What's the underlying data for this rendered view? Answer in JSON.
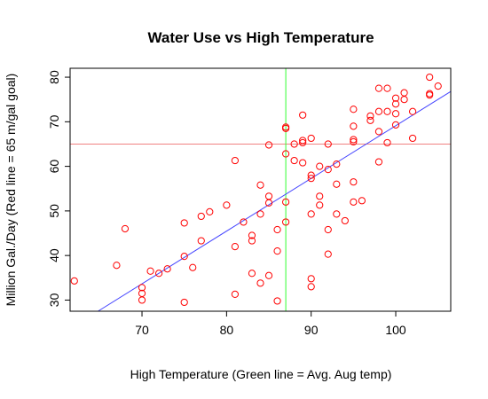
{
  "chart_data": {
    "type": "scatter",
    "title": "Water Use vs High Temperature",
    "xlabel": "High Temperature (Green line = Avg. Aug temp)",
    "ylabel": "Million Gal./Day (Red line = 65 m/gal goal)",
    "xlim": [
      61.5,
      106.5
    ],
    "ylim": [
      27.5,
      82
    ],
    "x_ticks": [
      70,
      80,
      90,
      100
    ],
    "y_ticks": [
      30,
      40,
      50,
      60,
      70,
      80
    ],
    "grid": false,
    "legend": "none",
    "point_color": "#ff0000",
    "reference_lines": [
      {
        "orientation": "horizontal",
        "value": 65,
        "color": "#f08080"
      },
      {
        "orientation": "vertical",
        "value": 87,
        "color": "#33ff33"
      }
    ],
    "trend_line": {
      "x": [
        64.8,
        106.5
      ],
      "y": [
        27.5,
        76.8
      ],
      "color": "#4444ff"
    },
    "points": [
      {
        "x": 62,
        "y": 34.3
      },
      {
        "x": 67,
        "y": 37.8
      },
      {
        "x": 68,
        "y": 46.0
      },
      {
        "x": 70,
        "y": 32.8
      },
      {
        "x": 70,
        "y": 31.5
      },
      {
        "x": 70,
        "y": 30.0
      },
      {
        "x": 71,
        "y": 36.5
      },
      {
        "x": 72,
        "y": 36.0
      },
      {
        "x": 73,
        "y": 37.0
      },
      {
        "x": 75,
        "y": 47.3
      },
      {
        "x": 75,
        "y": 39.8
      },
      {
        "x": 75,
        "y": 29.5
      },
      {
        "x": 76,
        "y": 37.3
      },
      {
        "x": 77,
        "y": 48.8
      },
      {
        "x": 77,
        "y": 43.3
      },
      {
        "x": 78,
        "y": 49.8
      },
      {
        "x": 80,
        "y": 51.3
      },
      {
        "x": 81,
        "y": 61.3
      },
      {
        "x": 81,
        "y": 42.0
      },
      {
        "x": 81,
        "y": 31.3
      },
      {
        "x": 82,
        "y": 47.5
      },
      {
        "x": 83,
        "y": 44.5
      },
      {
        "x": 83,
        "y": 43.3
      },
      {
        "x": 83,
        "y": 36.0
      },
      {
        "x": 84,
        "y": 55.8
      },
      {
        "x": 84,
        "y": 49.3
      },
      {
        "x": 84,
        "y": 33.8
      },
      {
        "x": 85,
        "y": 64.8
      },
      {
        "x": 85,
        "y": 53.3
      },
      {
        "x": 85,
        "y": 51.8
      },
      {
        "x": 85,
        "y": 35.5
      },
      {
        "x": 86,
        "y": 45.8
      },
      {
        "x": 86,
        "y": 41.0
      },
      {
        "x": 86,
        "y": 29.8
      },
      {
        "x": 87,
        "y": 68.8
      },
      {
        "x": 87,
        "y": 68.5
      },
      {
        "x": 87,
        "y": 62.8
      },
      {
        "x": 87,
        "y": 52.0
      },
      {
        "x": 87,
        "y": 47.5
      },
      {
        "x": 88,
        "y": 65.0
      },
      {
        "x": 88,
        "y": 61.3
      },
      {
        "x": 89,
        "y": 71.5
      },
      {
        "x": 89,
        "y": 65.8
      },
      {
        "x": 89,
        "y": 65.3
      },
      {
        "x": 89,
        "y": 60.8
      },
      {
        "x": 90,
        "y": 66.3
      },
      {
        "x": 90,
        "y": 58.0
      },
      {
        "x": 90,
        "y": 57.3
      },
      {
        "x": 90,
        "y": 49.3
      },
      {
        "x": 90,
        "y": 34.8
      },
      {
        "x": 90,
        "y": 33.0
      },
      {
        "x": 91,
        "y": 60.0
      },
      {
        "x": 91,
        "y": 53.3
      },
      {
        "x": 91,
        "y": 51.3
      },
      {
        "x": 92,
        "y": 65.0
      },
      {
        "x": 92,
        "y": 59.3
      },
      {
        "x": 92,
        "y": 45.8
      },
      {
        "x": 92,
        "y": 40.3
      },
      {
        "x": 93,
        "y": 60.5
      },
      {
        "x": 93,
        "y": 56.0
      },
      {
        "x": 93,
        "y": 49.3
      },
      {
        "x": 94,
        "y": 47.8
      },
      {
        "x": 95,
        "y": 72.8
      },
      {
        "x": 95,
        "y": 69.0
      },
      {
        "x": 95,
        "y": 66.0
      },
      {
        "x": 95,
        "y": 65.5
      },
      {
        "x": 95,
        "y": 56.5
      },
      {
        "x": 95,
        "y": 52.0
      },
      {
        "x": 96,
        "y": 52.3
      },
      {
        "x": 97,
        "y": 71.3
      },
      {
        "x": 97,
        "y": 70.3
      },
      {
        "x": 98,
        "y": 77.5
      },
      {
        "x": 98,
        "y": 72.3
      },
      {
        "x": 98,
        "y": 67.8
      },
      {
        "x": 98,
        "y": 61.0
      },
      {
        "x": 99,
        "y": 77.5
      },
      {
        "x": 99,
        "y": 72.3
      },
      {
        "x": 99,
        "y": 65.3
      },
      {
        "x": 100,
        "y": 75.3
      },
      {
        "x": 100,
        "y": 74.0
      },
      {
        "x": 100,
        "y": 71.8
      },
      {
        "x": 100,
        "y": 69.3
      },
      {
        "x": 101,
        "y": 76.5
      },
      {
        "x": 101,
        "y": 75.0
      },
      {
        "x": 102,
        "y": 72.3
      },
      {
        "x": 102,
        "y": 66.3
      },
      {
        "x": 104,
        "y": 80.0
      },
      {
        "x": 104,
        "y": 76.3
      },
      {
        "x": 104,
        "y": 76.0
      },
      {
        "x": 105,
        "y": 78.0
      }
    ]
  }
}
